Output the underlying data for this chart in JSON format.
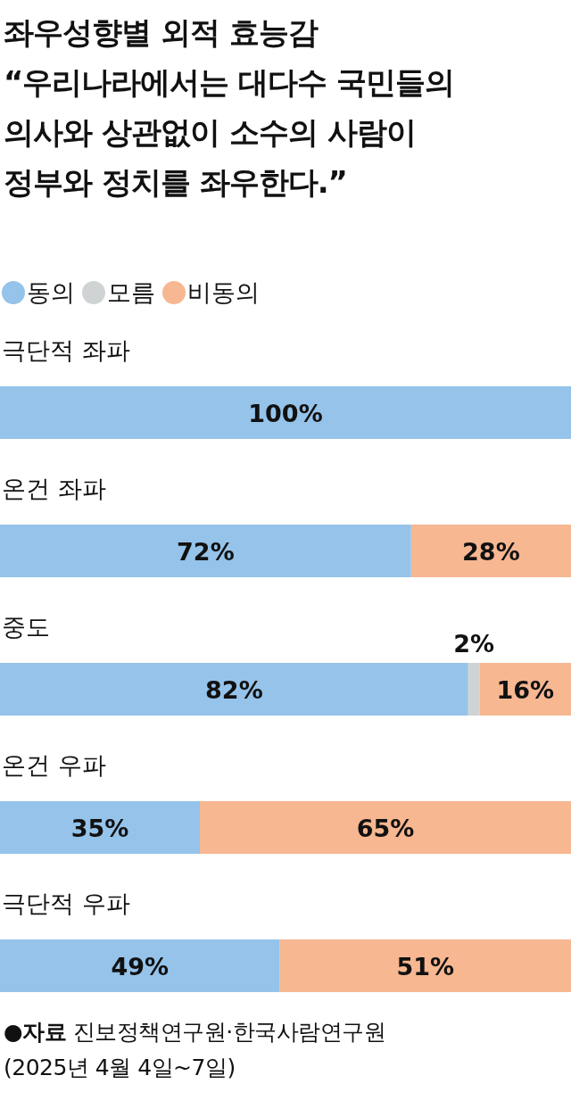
{
  "chart_data": {
    "type": "bar",
    "orientation": "horizontal",
    "stacked": true,
    "title": "좌우성향별 외적 효능감",
    "subtitle": "“우리나라에서는 대다수 국민들의 의사와 상관없이 소수의 사람이 정부와 정치를 좌우한다.”",
    "categories": [
      "극단적 좌파",
      "온건 좌파",
      "중도",
      "온건 우파",
      "극단적 우파"
    ],
    "series": [
      {
        "name": "동의",
        "color": "#95c3ea",
        "values": [
          100,
          72,
          82,
          35,
          49
        ],
        "value_labels": [
          "100%",
          "72%",
          "82%",
          "35%",
          "49%"
        ]
      },
      {
        "name": "모름",
        "color": "#d0d3d4",
        "values": [
          null,
          null,
          2,
          null,
          null
        ],
        "value_labels": [
          null,
          null,
          "2%",
          null,
          null
        ]
      },
      {
        "name": "비동의",
        "color": "#f6b791",
        "values": [
          null,
          28,
          16,
          65,
          51
        ],
        "value_labels": [
          null,
          "28%",
          "16%",
          "65%",
          "51%"
        ]
      }
    ],
    "legend": "top left",
    "annotations": [
      "●**자료** 진보정책연구원·한국사람연구원",
      "(2025년 4월 4일~7일)"
    ]
  }
}
